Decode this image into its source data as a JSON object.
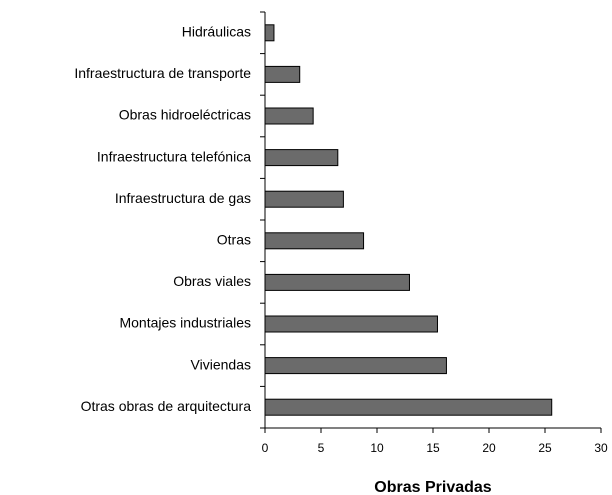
{
  "chart_data": {
    "type": "bar",
    "orientation": "horizontal",
    "xlabel": "Obras Privadas",
    "categories": [
      "Hidráulicas",
      "Infraestructura de transporte",
      "Obras hidroeléctricas",
      "Infraestructura telefónica",
      "Infraestructura de gas",
      "Otras",
      "Obras viales",
      "Montajes industriales",
      "Viviendas",
      "Otras obras de arquitectura"
    ],
    "values": [
      0.8,
      3.1,
      4.3,
      6.5,
      7.0,
      8.8,
      12.9,
      15.4,
      16.2,
      25.6
    ],
    "color": "#6b6b6b",
    "xlim": [
      0,
      30
    ],
    "xticks": [
      0,
      5,
      10,
      15,
      20,
      25,
      30
    ],
    "grid": false
  }
}
